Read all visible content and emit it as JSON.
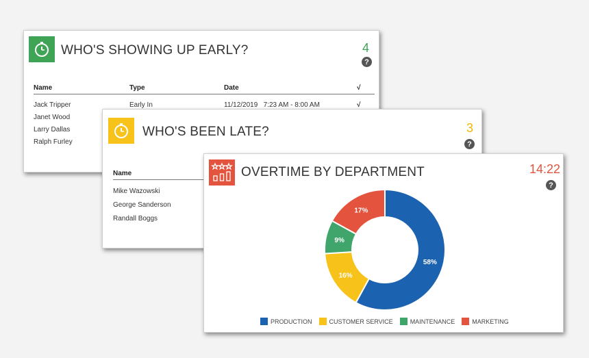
{
  "early_card": {
    "title": "WHO'S SHOWING UP EARLY?",
    "count": "4",
    "count_color": "#3fa455",
    "icon": "stopwatch-icon",
    "icon_color": "#3fa455",
    "help": "?",
    "columns": [
      "Name",
      "Type",
      "Date",
      "√"
    ],
    "rows": [
      {
        "name": "Jack Tripper",
        "type": "Early In",
        "date": "11/12/2019   7:23 AM - 8:00 AM",
        "check": "√"
      },
      {
        "name": "Janet Wood",
        "type": "",
        "date": "",
        "check": ""
      },
      {
        "name": "Larry Dallas",
        "type": "",
        "date": "",
        "check": ""
      },
      {
        "name": "Ralph Furley",
        "type": "",
        "date": "",
        "check": ""
      }
    ]
  },
  "late_card": {
    "title": "WHO'S BEEN LATE?",
    "count": "3",
    "count_color": "#f2b705",
    "icon": "stopwatch-icon",
    "icon_color": "#f7c21a",
    "help": "?",
    "columns": [
      "Name"
    ],
    "rows": [
      {
        "name": "Mike Wazowski"
      },
      {
        "name": "George Sanderson"
      },
      {
        "name": "Randall Boggs"
      }
    ]
  },
  "overtime_card": {
    "title": "OVERTIME BY DEPARTMENT",
    "count": "14:22",
    "count_color": "#e4533d",
    "icon": "bar-chart-stars-icon",
    "icon_color": "#e4533d",
    "help": "?"
  },
  "chart_data": {
    "type": "pie",
    "title": "",
    "categories": [
      "PRODUCTION",
      "CUSTOMER SERVICE",
      "MAINTENANCE",
      "MARKETING"
    ],
    "values": [
      58,
      16,
      9,
      17
    ],
    "labels": [
      "58%",
      "16%",
      "9%",
      "17%"
    ],
    "colors": [
      "#1b62b0",
      "#f7c21a",
      "#3fa56b",
      "#e4533d"
    ],
    "donut": true,
    "legend": "bottom"
  }
}
